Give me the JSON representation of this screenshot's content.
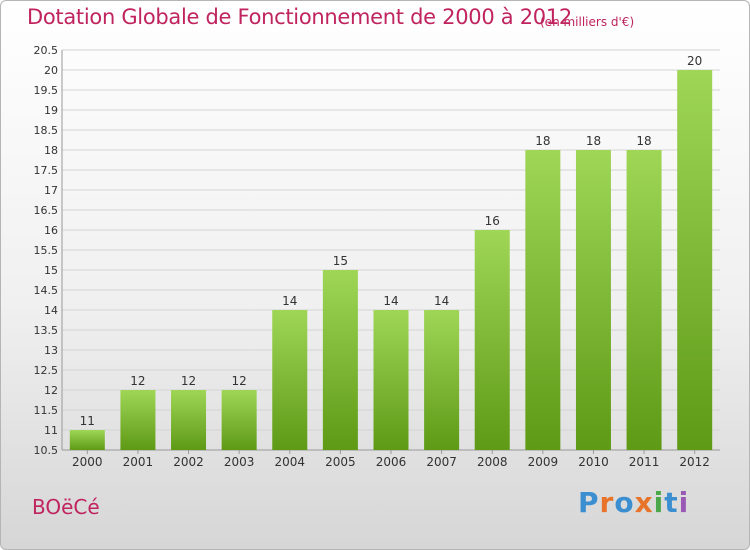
{
  "title": "Dotation Globale de Fonctionnement de 2000 à 2012",
  "unit_note": "(en milliers d'€)",
  "commune": "BOëCé",
  "logo": {
    "letters": [
      "P",
      "r",
      "o",
      "x",
      "i",
      "t",
      "i"
    ],
    "colors": [
      "#3b8fd1",
      "#e8732a",
      "#3b8fd1",
      "#e8732a",
      "#4aa84a",
      "#3b8fd1",
      "#9b59b6"
    ]
  },
  "colors": {
    "accent": "#c0245f",
    "bar_top": "#9fd656",
    "bar_bottom": "#5e9a16",
    "grid": "#d4d4d4"
  },
  "chart_data": {
    "type": "bar",
    "categories": [
      "2000",
      "2001",
      "2002",
      "2003",
      "2004",
      "2005",
      "2006",
      "2007",
      "2008",
      "2009",
      "2010",
      "2011",
      "2012"
    ],
    "values": [
      11,
      12,
      12,
      12,
      14,
      15,
      14,
      14,
      16,
      18,
      18,
      18,
      20
    ],
    "value_labels": [
      "11",
      "12",
      "12",
      "12",
      "14",
      "15",
      "14",
      "14",
      "16",
      "18",
      "18",
      "18",
      "20"
    ],
    "yticks": [
      "10.5",
      "11",
      "11.5",
      "12",
      "12.5",
      "13",
      "13.5",
      "14",
      "14.5",
      "15",
      "15.5",
      "16",
      "16.5",
      "17",
      "17.5",
      "18",
      "18.5",
      "19",
      "19.5",
      "20",
      "20.5"
    ],
    "ylim": [
      10.5,
      20.5
    ],
    "grid": true,
    "legend": "none"
  }
}
